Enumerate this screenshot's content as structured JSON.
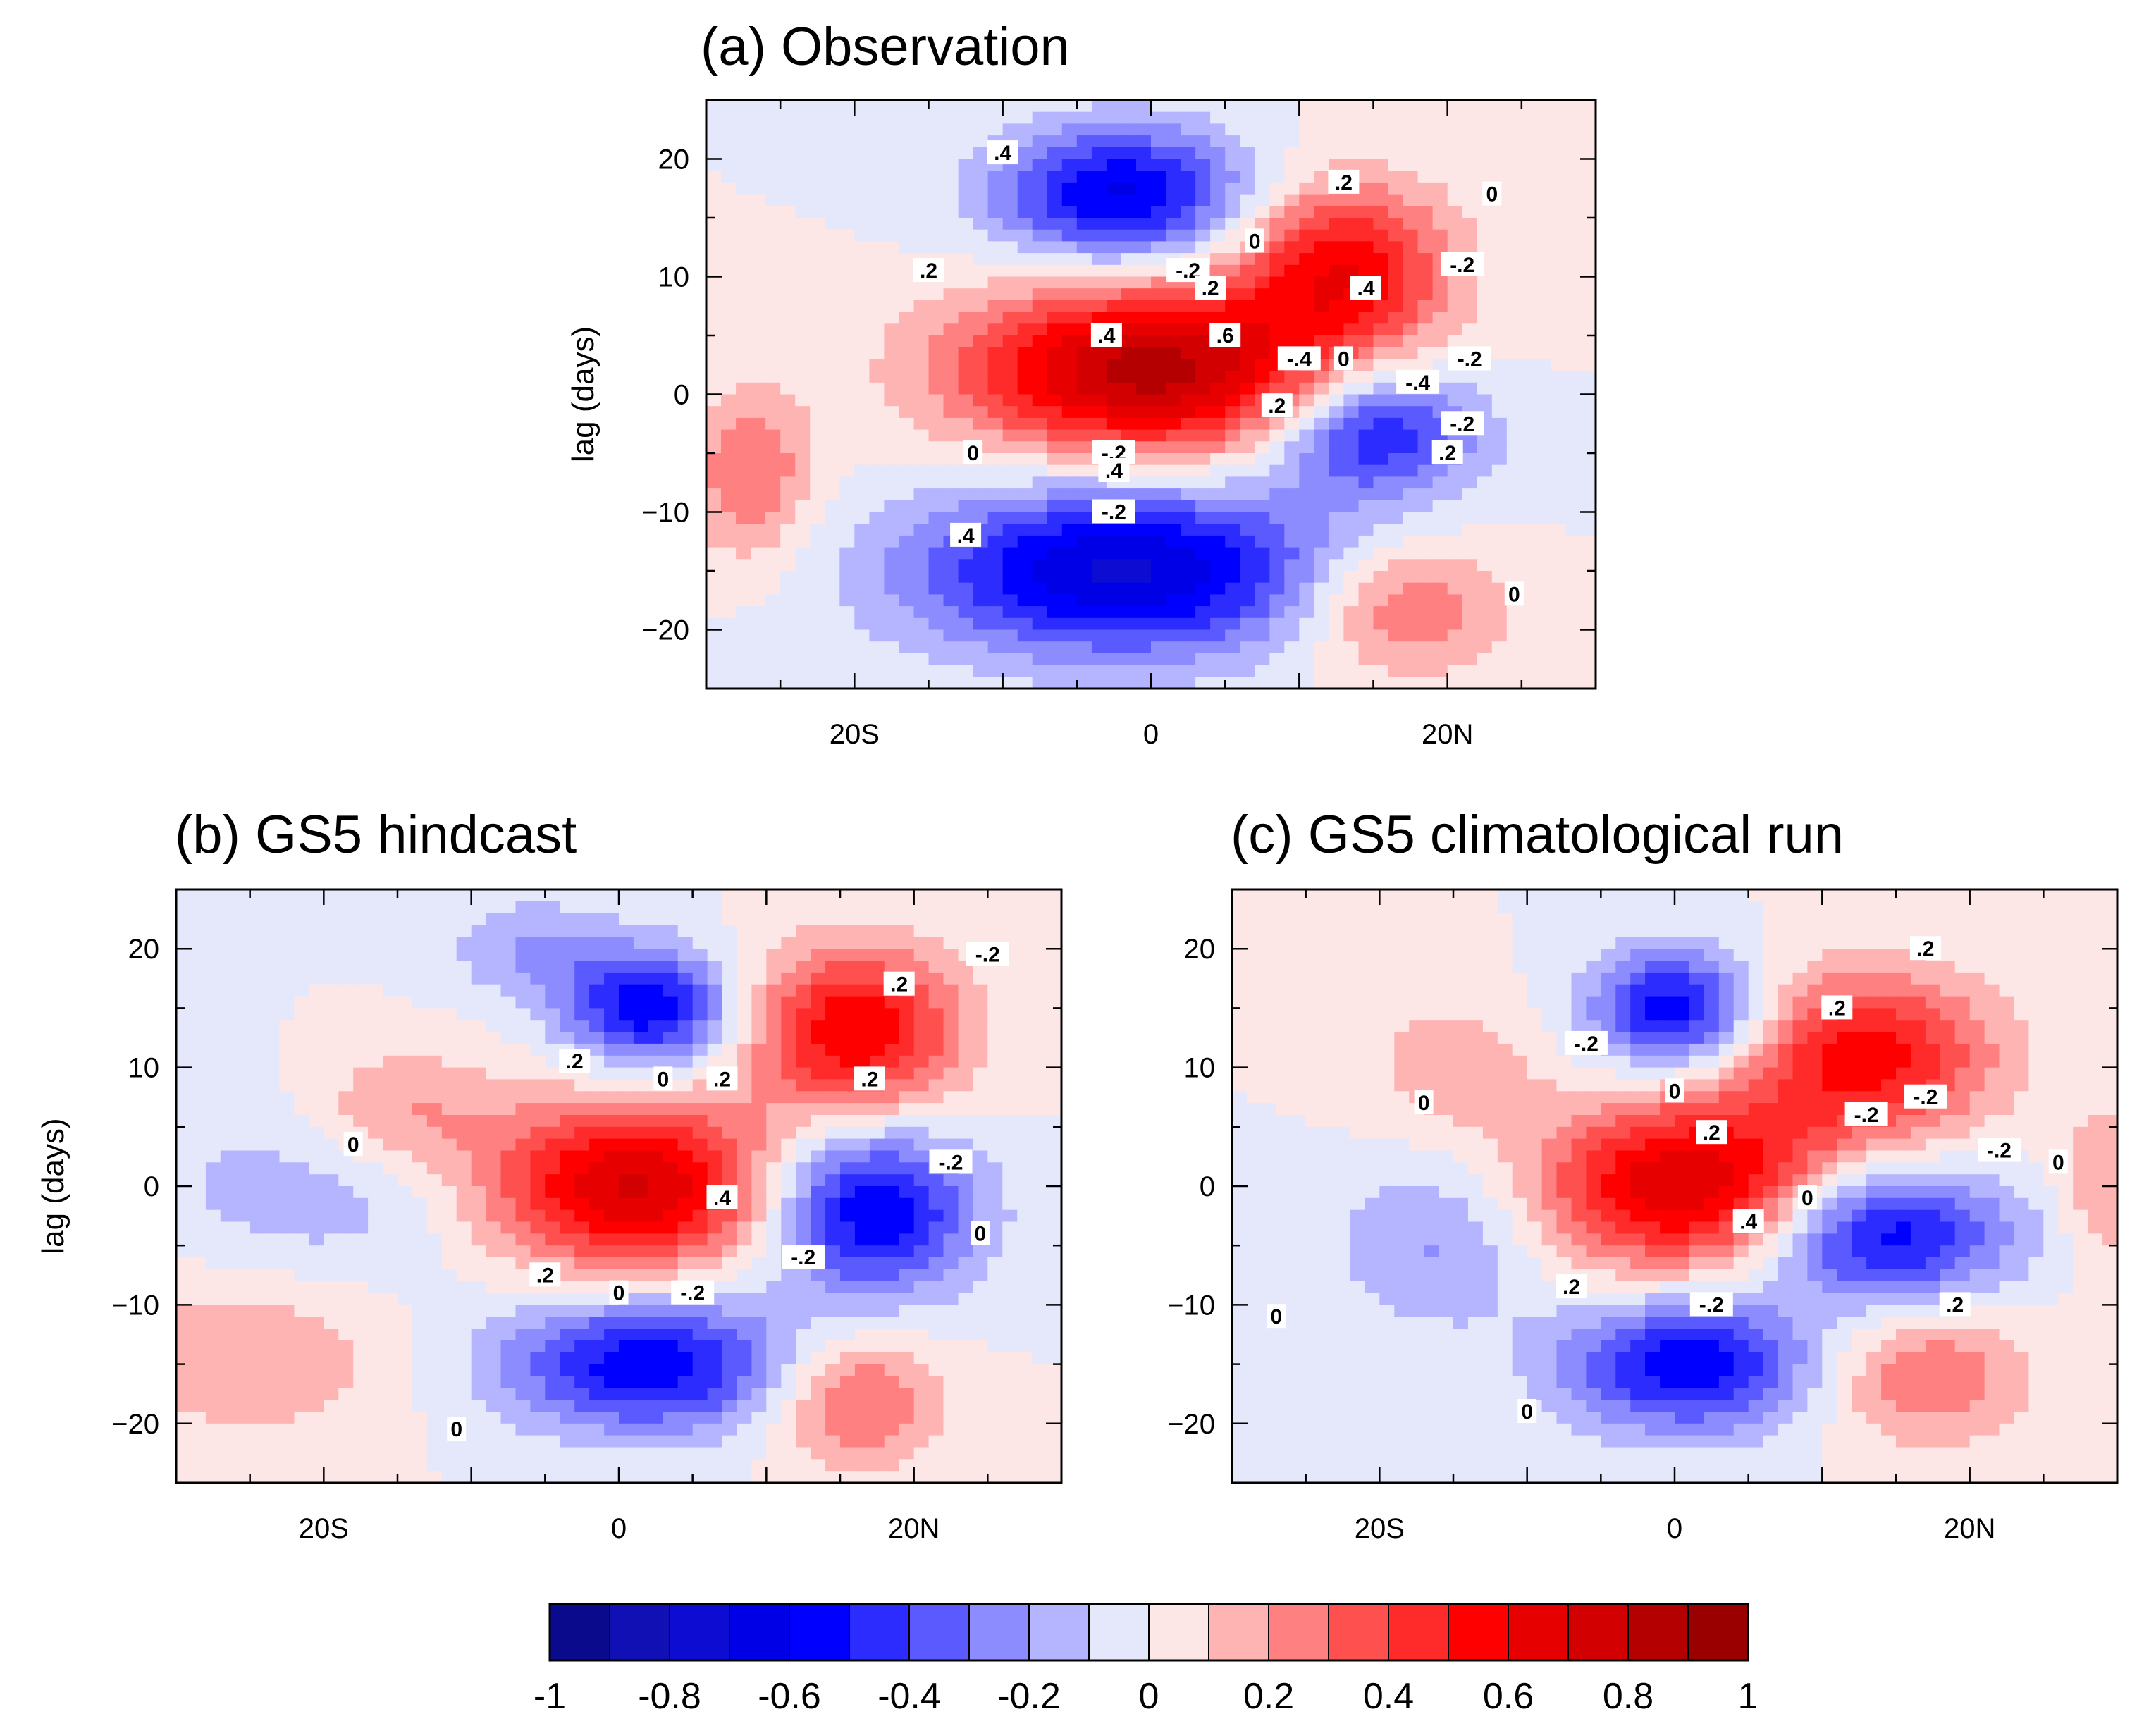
{
  "chart_data": [
    {
      "type": "heatmap",
      "id": "a",
      "title": "(a) Observation",
      "ylabel": "lag (days)",
      "xlim": [
        -30,
        30
      ],
      "ylim": [
        -25,
        25
      ],
      "xticks": [
        {
          "v": -20,
          "label": "20S"
        },
        {
          "v": 0,
          "label": "0"
        },
        {
          "v": 20,
          "label": "20N"
        }
      ],
      "yticks": [
        20,
        10,
        0,
        -10,
        -20
      ],
      "show_ylabel": true,
      "blobs": [
        {
          "x": 0,
          "y": 2,
          "sx": 9,
          "sy": 5,
          "a": 0.85
        },
        {
          "x": 13,
          "y": 11,
          "sx": 5,
          "sy": 5,
          "a": 0.55
        },
        {
          "x": -2,
          "y": 17,
          "sx": 6,
          "sy": 4,
          "a": -0.62
        },
        {
          "x": -2,
          "y": -15,
          "sx": 10,
          "sy": 5,
          "a": -0.72
        },
        {
          "x": 15,
          "y": -3,
          "sx": 5,
          "sy": 4,
          "a": -0.55
        },
        {
          "x": 17,
          "y": -18,
          "sx": 5,
          "sy": 4,
          "a": 0.35
        },
        {
          "x": -27,
          "y": -7,
          "sx": 3,
          "sy": 5,
          "a": 0.3
        }
      ],
      "contour_labels": [
        {
          "x": -10,
          "y": 20.5,
          "t": ".4"
        },
        {
          "x": 13,
          "y": 18,
          "t": ".2"
        },
        {
          "x": 23,
          "y": 17,
          "t": "0"
        },
        {
          "x": -15,
          "y": 10.5,
          "t": ".2"
        },
        {
          "x": 7,
          "y": 13,
          "t": "0"
        },
        {
          "x": 2.5,
          "y": 10.5,
          "t": "-.2"
        },
        {
          "x": 4,
          "y": 9,
          "t": ".2"
        },
        {
          "x": 14.5,
          "y": 9,
          "t": ".4"
        },
        {
          "x": 21,
          "y": 11,
          "t": "-.2"
        },
        {
          "x": -3,
          "y": 5,
          "t": ".4"
        },
        {
          "x": 5,
          "y": 5,
          "t": ".6"
        },
        {
          "x": 10,
          "y": 3,
          "t": "-.4"
        },
        {
          "x": 13,
          "y": 3,
          "t": "0"
        },
        {
          "x": 18,
          "y": 1,
          "t": "-.4"
        },
        {
          "x": 21.5,
          "y": 3,
          "t": "-.2"
        },
        {
          "x": 8.5,
          "y": -1,
          "t": ".2"
        },
        {
          "x": 21,
          "y": -2.5,
          "t": "-.2"
        },
        {
          "x": -12,
          "y": -5,
          "t": "0"
        },
        {
          "x": -2.5,
          "y": -5,
          "t": "-.2"
        },
        {
          "x": 20,
          "y": -5,
          "t": ".2"
        },
        {
          "x": -2.5,
          "y": -6.5,
          "t": ".4"
        },
        {
          "x": -2.5,
          "y": -10,
          "t": "-.2"
        },
        {
          "x": -12.5,
          "y": -12,
          "t": ".4"
        },
        {
          "x": 24.5,
          "y": -17,
          "t": "0"
        }
      ]
    },
    {
      "type": "heatmap",
      "id": "b",
      "title": "(b) GS5 hindcast",
      "ylabel": "lag (days)",
      "xlim": [
        -30,
        30
      ],
      "ylim": [
        -25,
        25
      ],
      "xticks": [
        {
          "v": -20,
          "label": "20S"
        },
        {
          "v": 0,
          "label": "0"
        },
        {
          "v": 20,
          "label": "20N"
        }
      ],
      "yticks": [
        20,
        10,
        0,
        -10,
        -20
      ],
      "show_ylabel": true,
      "blobs": [
        {
          "x": 1,
          "y": 0,
          "sx": 7,
          "sy": 5,
          "a": 0.72
        },
        {
          "x": 16,
          "y": 13,
          "sx": 5,
          "sy": 5,
          "a": 0.6
        },
        {
          "x": 2,
          "y": 15,
          "sx": 4,
          "sy": 3.5,
          "a": -0.58
        },
        {
          "x": 17,
          "y": -2,
          "sx": 5,
          "sy": 5,
          "a": -0.62
        },
        {
          "x": 2,
          "y": -15,
          "sx": 7,
          "sy": 4,
          "a": -0.58
        },
        {
          "x": 16,
          "y": -18,
          "sx": 4,
          "sy": 4,
          "a": 0.35
        },
        {
          "x": -15,
          "y": 6,
          "sx": 5,
          "sy": 4,
          "a": 0.25
        },
        {
          "x": -25,
          "y": -14,
          "sx": 7,
          "sy": 5,
          "a": 0.2
        },
        {
          "x": -20,
          "y": 0,
          "sx": 8,
          "sy": 6,
          "a": -0.18
        },
        {
          "x": -6,
          "y": 20,
          "sx": 4,
          "sy": 3,
          "a": -0.2
        }
      ],
      "contour_labels": [
        {
          "x": 19,
          "y": 17,
          "t": ".2"
        },
        {
          "x": 25,
          "y": 19.5,
          "t": "-.2"
        },
        {
          "x": -3,
          "y": 10.5,
          "t": ".2"
        },
        {
          "x": 3,
          "y": 9,
          "t": "0"
        },
        {
          "x": 7,
          "y": 9,
          "t": ".2"
        },
        {
          "x": 17,
          "y": 9,
          "t": ".2"
        },
        {
          "x": -18,
          "y": 3.5,
          "t": "0"
        },
        {
          "x": 22.5,
          "y": 2,
          "t": "-.2"
        },
        {
          "x": 7,
          "y": -1,
          "t": ".4"
        },
        {
          "x": 24.5,
          "y": -4,
          "t": "0"
        },
        {
          "x": 12.5,
          "y": -6,
          "t": "-.2"
        },
        {
          "x": -5,
          "y": -7.5,
          "t": ".2"
        },
        {
          "x": 0,
          "y": -9,
          "t": "0"
        },
        {
          "x": 5,
          "y": -9,
          "t": "-.2"
        },
        {
          "x": -11,
          "y": -20.5,
          "t": "0"
        }
      ]
    },
    {
      "type": "heatmap",
      "id": "c",
      "title": "(c) GS5 climatological run",
      "ylabel": "",
      "xlim": [
        -30,
        30
      ],
      "ylim": [
        -25,
        25
      ],
      "xticks": [
        {
          "v": -20,
          "label": "20S"
        },
        {
          "v": 0,
          "label": "0"
        },
        {
          "v": 20,
          "label": "20N"
        }
      ],
      "yticks": [
        20,
        10,
        0,
        -10,
        -20
      ],
      "show_ylabel": false,
      "blobs": [
        {
          "x": 1,
          "y": 0,
          "sx": 7,
          "sy": 5,
          "a": 0.72
        },
        {
          "x": 13,
          "y": 11,
          "sx": 6,
          "sy": 5,
          "a": 0.55
        },
        {
          "x": 0,
          "y": 15,
          "sx": 4,
          "sy": 3.5,
          "a": -0.58
        },
        {
          "x": 14,
          "y": -4,
          "sx": 6,
          "sy": 4,
          "a": -0.6
        },
        {
          "x": 1,
          "y": -15,
          "sx": 6,
          "sy": 4,
          "a": -0.58
        },
        {
          "x": 17,
          "y": -16,
          "sx": 5,
          "sy": 4,
          "a": 0.3
        },
        {
          "x": -15,
          "y": 10,
          "sx": 4,
          "sy": 4,
          "a": 0.18
        },
        {
          "x": -16,
          "y": -5,
          "sx": 5,
          "sy": 5,
          "a": -0.22
        },
        {
          "x": 29,
          "y": 0,
          "sx": 2,
          "sy": 5,
          "a": 0.2
        }
      ],
      "contour_labels": [
        {
          "x": 17,
          "y": 20,
          "t": ".2"
        },
        {
          "x": -6,
          "y": 12,
          "t": "-.2"
        },
        {
          "x": 11,
          "y": 15,
          "t": ".2"
        },
        {
          "x": -17,
          "y": 7,
          "t": "0"
        },
        {
          "x": 0,
          "y": 8,
          "t": "0"
        },
        {
          "x": 13,
          "y": 6,
          "t": "-.2"
        },
        {
          "x": 17,
          "y": 7.5,
          "t": "-.2"
        },
        {
          "x": 2.5,
          "y": 4.5,
          "t": ".2"
        },
        {
          "x": 22,
          "y": 3,
          "t": "-.2"
        },
        {
          "x": 26,
          "y": 2,
          "t": "0"
        },
        {
          "x": 9,
          "y": -1,
          "t": "0"
        },
        {
          "x": 5,
          "y": -3,
          "t": ".4"
        },
        {
          "x": -7,
          "y": -8.5,
          "t": ".2"
        },
        {
          "x": 2.5,
          "y": -10,
          "t": "-.2"
        },
        {
          "x": 19,
          "y": -10,
          "t": ".2"
        },
        {
          "x": -27,
          "y": -11,
          "t": "0"
        },
        {
          "x": -10,
          "y": -19,
          "t": "0"
        }
      ]
    }
  ],
  "colorbar": {
    "min": -1,
    "max": 1,
    "tick_labels": [
      "-1",
      "-0.8",
      "-0.6",
      "-0.4",
      "-0.2",
      "0",
      "0.2",
      "0.4",
      "0.6",
      "0.8",
      "1"
    ],
    "colors": [
      "#0a0a8c",
      "#1010b4",
      "#0c0cd2",
      "#0000e6",
      "#0000ff",
      "#2c2cff",
      "#5a5aff",
      "#8c8cff",
      "#b4b4ff",
      "#e4e8fa",
      "#fde6e6",
      "#ffb4b4",
      "#ff8080",
      "#ff5050",
      "#ff2a2a",
      "#ff0000",
      "#e60000",
      "#d20000",
      "#b40000",
      "#9a0000"
    ]
  }
}
